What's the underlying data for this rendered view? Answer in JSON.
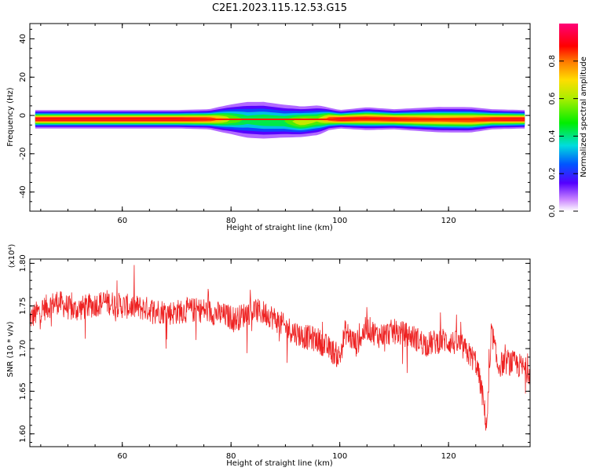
{
  "title": "C2E1.2023.115.12.53.G15",
  "chart_data": [
    {
      "type": "heatmap",
      "xlabel": "Height of straight line (km)",
      "ylabel": "Frequency (Hz)",
      "xlim": [
        43,
        135
      ],
      "ylim": [
        -50,
        48
      ],
      "xticks": [
        60,
        80,
        100,
        120
      ],
      "yticks": [
        40,
        20,
        0,
        -20,
        -40
      ],
      "colorbar": {
        "label": "Normalized spectral amplitude",
        "range": [
          0,
          1
        ],
        "ticks": [
          "0.0",
          "0.2",
          "0.4",
          "0.6",
          "0.8"
        ]
      },
      "band": {
        "center_freq": -2,
        "points": [
          {
            "x": 44,
            "offset": 0.0,
            "width": 2.0,
            "amp": 0.95
          },
          {
            "x": 50,
            "offset": 0.0,
            "width": 2.0,
            "amp": 0.95
          },
          {
            "x": 60,
            "offset": 0.0,
            "width": 2.0,
            "amp": 0.95
          },
          {
            "x": 70,
            "offset": 0.0,
            "width": 2.0,
            "amp": 0.95
          },
          {
            "x": 76,
            "offset": 0.0,
            "width": 2.2,
            "amp": 0.9
          },
          {
            "x": 80,
            "offset": 0.0,
            "width": 3.5,
            "amp": 0.6
          },
          {
            "x": 83,
            "offset": -0.3,
            "width": 4.5,
            "amp": 0.45
          },
          {
            "x": 86,
            "offset": -0.5,
            "width": 4.5,
            "amp": 0.5
          },
          {
            "x": 90,
            "offset": -1.0,
            "width": 4.0,
            "amp": 0.5
          },
          {
            "x": 93,
            "offset": -1.3,
            "width": 3.5,
            "amp": 0.7
          },
          {
            "x": 96,
            "offset": -0.5,
            "width": 3.5,
            "amp": 0.6
          },
          {
            "x": 98,
            "offset": 0.2,
            "width": 2.5,
            "amp": 0.85
          },
          {
            "x": 100,
            "offset": 0.0,
            "width": 2.0,
            "amp": 0.95
          },
          {
            "x": 105,
            "offset": 0.3,
            "width": 2.5,
            "amp": 0.9
          },
          {
            "x": 110,
            "offset": 0.0,
            "width": 2.2,
            "amp": 0.92
          },
          {
            "x": 118,
            "offset": -0.2,
            "width": 2.8,
            "amp": 0.85
          },
          {
            "x": 124,
            "offset": -0.3,
            "width": 2.8,
            "amp": 0.88
          },
          {
            "x": 128,
            "offset": 0.0,
            "width": 2.2,
            "amp": 0.92
          },
          {
            "x": 134,
            "offset": 0.0,
            "width": 2.0,
            "amp": 0.95
          }
        ]
      }
    },
    {
      "type": "line",
      "xlabel": "Height of straight line (km)",
      "ylabel": "SNR (10 * v/v)",
      "y_multiplier": "(x10⁴)",
      "xlim": [
        43,
        135
      ],
      "ylim": [
        1.585,
        1.805
      ],
      "xticks": [
        60,
        80,
        100,
        120
      ],
      "yticks": [
        "1.60",
        "1.65",
        "1.70",
        "1.75",
        "1.80"
      ],
      "color": "#ee2222",
      "x": [
        43,
        45,
        48,
        51,
        54,
        57,
        60,
        63,
        66,
        69,
        72,
        75,
        78,
        81,
        84,
        87,
        90,
        93,
        96,
        98,
        100,
        101,
        103,
        105,
        107,
        110,
        113,
        116,
        119,
        122,
        125,
        126,
        127,
        128,
        129,
        131,
        133,
        135
      ],
      "y": [
        1.735,
        1.745,
        1.755,
        1.745,
        1.75,
        1.755,
        1.75,
        1.748,
        1.745,
        1.742,
        1.745,
        1.745,
        1.74,
        1.735,
        1.745,
        1.74,
        1.725,
        1.715,
        1.71,
        1.7,
        1.69,
        1.72,
        1.705,
        1.725,
        1.715,
        1.72,
        1.715,
        1.705,
        1.71,
        1.705,
        1.685,
        1.655,
        1.61,
        1.72,
        1.68,
        1.685,
        1.68,
        1.672
      ]
    }
  ]
}
